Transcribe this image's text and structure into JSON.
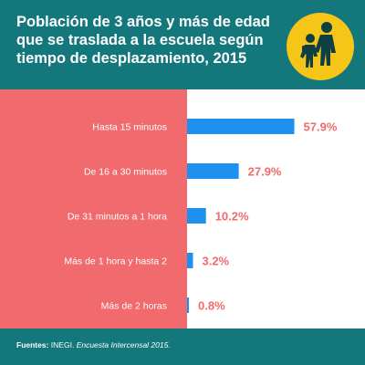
{
  "header": {
    "title_lines": [
      "Población de 3 años y más de edad",
      "que se traslada a la escuela según",
      "tiempo de desplazamiento, 2015"
    ],
    "icon": "children-walking-to-school-icon",
    "colors": {
      "background": "#14777c",
      "badge": "#f5c518"
    }
  },
  "chart_data": {
    "type": "bar",
    "orientation": "horizontal",
    "categories": [
      "Hasta 15 minutos",
      "De 16 a 30 minutos",
      "De 31 minutos a 1 hora",
      "Más de 1 hora y hasta 2",
      "Más de 2 horas"
    ],
    "values": [
      57.9,
      27.9,
      10.2,
      3.2,
      0.8
    ],
    "value_labels": [
      "57.9%",
      "27.9%",
      "10.2%",
      "3.2%",
      "0.8%"
    ],
    "unit": "%",
    "xlim": [
      0,
      100
    ],
    "grid": false,
    "legend": "none",
    "colors": {
      "bar": "#1e90f0",
      "label_panel": "#f06a6e",
      "value_text": "#f06a6e"
    }
  },
  "footer": {
    "source_label": "Fuentes:",
    "source_org": "INEGI.",
    "source_title": "Encuesta Intercensal 2015."
  }
}
